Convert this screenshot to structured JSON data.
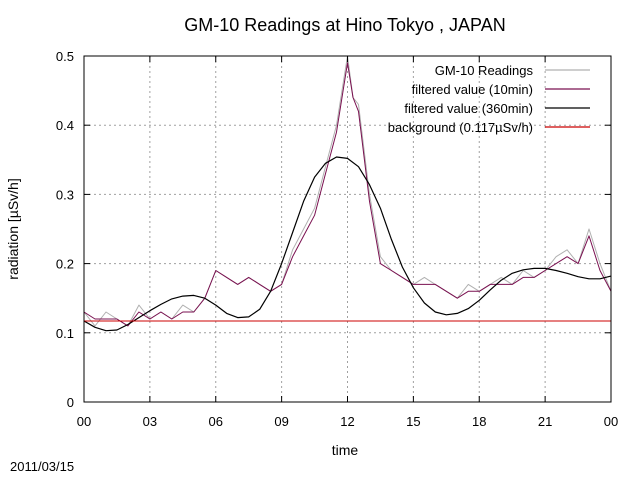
{
  "date_label": "2011/03/15",
  "chart_data": {
    "type": "line",
    "title": "GM-10 Readings  at  Hino Tokyo , JAPAN",
    "xlabel": "time",
    "ylabel": "radiation [µSv/h]",
    "xlim": [
      0,
      24
    ],
    "ylim": [
      0,
      0.5
    ],
    "x_ticks": [
      "00",
      "03",
      "06",
      "09",
      "12",
      "15",
      "18",
      "21",
      "00"
    ],
    "y_ticks": [
      "0",
      "0.1",
      "0.2",
      "0.3",
      "0.4",
      "0.5"
    ],
    "grid": true,
    "legend_position": "top-right",
    "series": [
      {
        "name": "GM-10 Readings",
        "color": "#b0b0b0",
        "x": [
          0,
          0.5,
          1,
          1.5,
          2,
          2.5,
          3,
          3.5,
          4,
          4.5,
          5,
          5.5,
          6,
          6.5,
          7,
          7.5,
          8,
          8.5,
          9,
          9.5,
          10,
          10.5,
          11,
          11.5,
          12,
          12.25,
          12.5,
          13,
          13.5,
          14,
          14.5,
          15,
          15.5,
          16,
          16.5,
          17,
          17.5,
          18,
          18.5,
          19,
          19.5,
          20,
          20.5,
          21,
          21.5,
          22,
          22.5,
          23,
          23.5,
          24
        ],
        "values": [
          0.13,
          0.11,
          0.13,
          0.12,
          0.11,
          0.14,
          0.12,
          0.13,
          0.12,
          0.14,
          0.13,
          0.15,
          0.19,
          0.18,
          0.17,
          0.18,
          0.17,
          0.16,
          0.17,
          0.22,
          0.25,
          0.28,
          0.34,
          0.4,
          0.5,
          0.44,
          0.43,
          0.3,
          0.21,
          0.19,
          0.18,
          0.17,
          0.18,
          0.17,
          0.16,
          0.15,
          0.17,
          0.16,
          0.17,
          0.18,
          0.17,
          0.19,
          0.18,
          0.19,
          0.21,
          0.22,
          0.2,
          0.25,
          0.2,
          0.16
        ]
      },
      {
        "name": "filtered value (10min)",
        "color": "#7a1050",
        "x": [
          0,
          0.5,
          1,
          1.5,
          2,
          2.5,
          3,
          3.5,
          4,
          4.5,
          5,
          5.5,
          6,
          6.5,
          7,
          7.5,
          8,
          8.5,
          9,
          9.5,
          10,
          10.5,
          11,
          11.5,
          12,
          12.25,
          12.5,
          13,
          13.5,
          14,
          14.5,
          15,
          15.5,
          16,
          16.5,
          17,
          17.5,
          18,
          18.5,
          19,
          19.5,
          20,
          20.5,
          21,
          21.5,
          22,
          22.5,
          23,
          23.5,
          24
        ],
        "values": [
          0.13,
          0.12,
          0.12,
          0.12,
          0.11,
          0.13,
          0.12,
          0.13,
          0.12,
          0.13,
          0.13,
          0.15,
          0.19,
          0.18,
          0.17,
          0.18,
          0.17,
          0.16,
          0.17,
          0.21,
          0.24,
          0.27,
          0.33,
          0.39,
          0.49,
          0.44,
          0.42,
          0.29,
          0.2,
          0.19,
          0.18,
          0.17,
          0.17,
          0.17,
          0.16,
          0.15,
          0.16,
          0.16,
          0.17,
          0.17,
          0.17,
          0.18,
          0.18,
          0.19,
          0.2,
          0.21,
          0.2,
          0.24,
          0.19,
          0.16
        ]
      },
      {
        "name": "filtered value (360min)",
        "color": "#000000",
        "x": [
          0,
          0.5,
          1,
          1.5,
          2,
          2.5,
          3,
          3.5,
          4,
          4.5,
          5,
          5.5,
          6,
          6.5,
          7,
          7.5,
          8,
          8.5,
          9,
          9.5,
          10,
          10.5,
          11,
          11.5,
          12,
          12.5,
          13,
          13.5,
          14,
          14.5,
          15,
          15.5,
          16,
          16.5,
          17,
          17.5,
          18,
          18.5,
          19,
          19.5,
          20,
          20.5,
          21,
          21.5,
          22,
          22.5,
          23,
          23.5,
          24
        ],
        "values": [
          0.117,
          0.108,
          0.103,
          0.104,
          0.112,
          0.122,
          0.132,
          0.141,
          0.149,
          0.153,
          0.154,
          0.15,
          0.14,
          0.128,
          0.122,
          0.123,
          0.134,
          0.16,
          0.2,
          0.245,
          0.29,
          0.325,
          0.345,
          0.354,
          0.352,
          0.34,
          0.314,
          0.28,
          0.235,
          0.195,
          0.165,
          0.143,
          0.13,
          0.126,
          0.128,
          0.135,
          0.147,
          0.162,
          0.176,
          0.186,
          0.191,
          0.193,
          0.193,
          0.19,
          0.186,
          0.181,
          0.178,
          0.178,
          0.182
        ]
      },
      {
        "name": "background (0.117µSv/h)",
        "color": "#cc0000",
        "x": [
          0,
          24
        ],
        "values": [
          0.117,
          0.117
        ]
      }
    ]
  }
}
